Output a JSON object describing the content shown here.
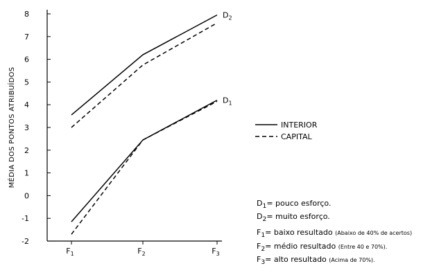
{
  "chart_data": {
    "type": "line",
    "categories": [
      "F1",
      "F2",
      "F3"
    ],
    "category_labels": [
      {
        "main": "F",
        "sub": "1"
      },
      {
        "main": "F",
        "sub": "2"
      },
      {
        "main": "F",
        "sub": "3"
      }
    ],
    "ylabel": "MÉDIA DOS PONTOS ATRIBUÍDOS",
    "ylim": [
      -2,
      8
    ],
    "yticks": [
      8,
      7,
      6,
      5,
      4,
      3,
      2,
      1,
      0,
      -1,
      -2
    ],
    "series": [
      {
        "name": "INTERIOR",
        "group": "D2",
        "style": "solid",
        "values": [
          3.55,
          6.2,
          7.95
        ]
      },
      {
        "name": "CAPITAL",
        "group": "D2",
        "style": "dashed",
        "values": [
          3.0,
          5.75,
          7.6
        ]
      },
      {
        "name": "INTERIOR",
        "group": "D1",
        "style": "solid",
        "values": [
          -1.15,
          2.45,
          4.2
        ]
      },
      {
        "name": "CAPITAL",
        "group": "D1",
        "style": "dashed",
        "values": [
          -1.7,
          2.45,
          4.15
        ]
      }
    ],
    "line_labels": [
      {
        "main": "D",
        "sub": "2",
        "series_index": 0
      },
      {
        "main": "D",
        "sub": "1",
        "series_index": 2
      }
    ],
    "legend": [
      {
        "label": "INTERIOR",
        "style": "solid"
      },
      {
        "label": "CAPITAL",
        "style": "dashed"
      }
    ],
    "legend_position": "right"
  },
  "notes": [
    {
      "sym": "D",
      "sub": "1",
      "text": "= pouco esforço.",
      "detail": ""
    },
    {
      "sym": "D",
      "sub": "2",
      "text": "= muito esforço.",
      "detail": ""
    },
    {
      "sym": "F",
      "sub": "1",
      "text": "= baixo resultado",
      "detail": "(Abaixo de 40% de acertos)"
    },
    {
      "sym": "F",
      "sub": "2",
      "text": "= médio resultado",
      "detail": "(Entre 40 e 70%)."
    },
    {
      "sym": "F",
      "sub": "3",
      "text": "= alto resultado",
      "detail": "(Acima de 70%)."
    }
  ],
  "colors": {
    "line": "#000000",
    "background": "#ffffff"
  }
}
